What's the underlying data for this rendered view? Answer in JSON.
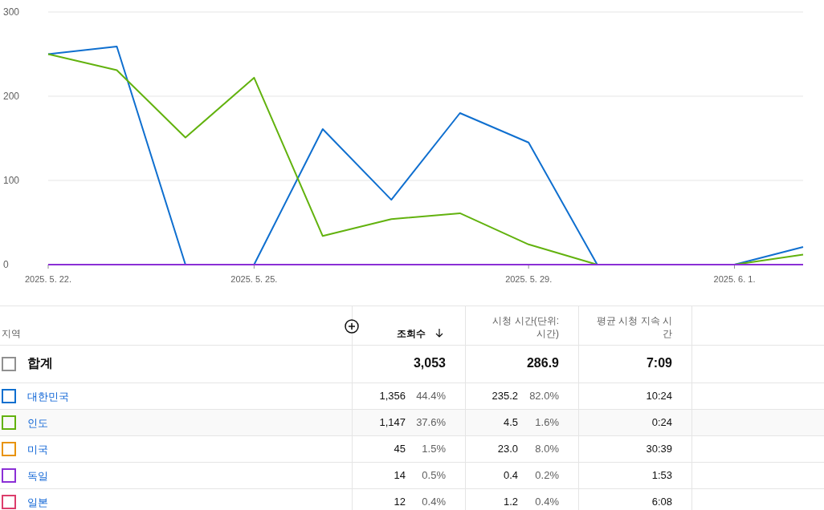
{
  "chart_data": {
    "type": "line",
    "x": [
      "2025-05-22",
      "2025-05-23",
      "2025-05-24",
      "2025-05-25",
      "2025-05-26",
      "2025-05-27",
      "2025-05-28",
      "2025-05-29",
      "2025-05-30",
      "2025-05-31",
      "2025-06-01",
      "2025-06-02"
    ],
    "xlim": [
      "2025-05-22",
      "2025-06-02"
    ],
    "xticks": [
      {
        "value": "2025-05-22",
        "label": "2025. 5. 22."
      },
      {
        "value": "2025-05-25",
        "label": "2025. 5. 25."
      },
      {
        "value": "2025-05-29",
        "label": "2025. 5. 29."
      },
      {
        "value": "2025-06-01",
        "label": "2025. 6. 1."
      }
    ],
    "ylim": [
      0,
      300
    ],
    "yticks": [
      0,
      100,
      200,
      300
    ],
    "grid": "y",
    "legend": "bottom",
    "series": [
      {
        "name": "대한민국",
        "color": "#0f6fcf",
        "values": [
          250,
          259,
          0,
          0,
          161,
          77,
          180,
          145,
          0,
          0,
          0,
          21
        ]
      },
      {
        "name": "인도",
        "color": "#62b20e",
        "values": [
          250,
          231,
          151,
          222,
          34,
          54,
          61,
          24,
          0,
          0,
          0,
          12
        ]
      },
      {
        "name": "미국",
        "color": "#e8930c",
        "values": [
          null,
          null,
          null,
          null,
          null,
          null,
          null,
          null,
          null,
          null,
          null,
          null
        ]
      },
      {
        "name": "독일",
        "color": "#8b2fd6",
        "values": [
          0,
          0,
          0,
          0,
          0,
          0,
          0,
          0,
          0,
          0,
          0,
          0
        ]
      },
      {
        "name": "일본",
        "color": "#dc3d6b",
        "values": [
          null,
          null,
          null,
          null,
          null,
          null,
          null,
          null,
          null,
          null,
          null,
          null
        ]
      }
    ],
    "annotations": [
      "지역",
      "조회수",
      "시청 시간(단위: 시간)",
      "평균 시청 지속 시간",
      "합계",
      "3,053",
      "286.9",
      "7:09",
      "1,356",
      "44.4%",
      "235.2",
      "82.0%",
      "10:24",
      "1,147",
      "37.6%",
      "4.5",
      "1.6%",
      "0:24",
      "45",
      "1.5%",
      "23.0",
      "8.0%",
      "30:39",
      "14",
      "0.5%",
      "0.4",
      "0.2%",
      "1:53",
      "12",
      "0.4%",
      "1.2",
      "0.4%",
      "6:08"
    ]
  }
}
